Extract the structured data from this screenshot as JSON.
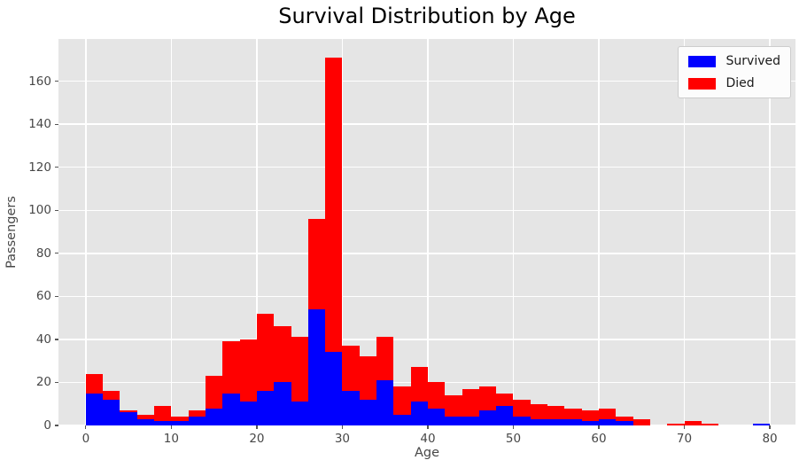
{
  "title": "Survival Distribution by Age",
  "chart_data": {
    "type": "bar",
    "subtype": "stacked-histogram",
    "title": "Survival Distribution by Age",
    "xlabel": "Age",
    "ylabel": "Passengers",
    "grid": true,
    "legend_position": "upper right",
    "bin_width": 2,
    "bin_starts": [
      0,
      2,
      4,
      6,
      8,
      10,
      12,
      14,
      16,
      18,
      20,
      22,
      24,
      26,
      28,
      30,
      32,
      34,
      36,
      38,
      40,
      42,
      44,
      46,
      48,
      50,
      52,
      54,
      56,
      58,
      60,
      62,
      64,
      66,
      68,
      70,
      72,
      74,
      76,
      78
    ],
    "series": [
      {
        "name": "Survived",
        "color": "#0000ff",
        "values": [
          15,
          12,
          6,
          3,
          2,
          2,
          4,
          8,
          15,
          11,
          16,
          20,
          11,
          54,
          34,
          16,
          12,
          21,
          5,
          11,
          8,
          4,
          4,
          7,
          9,
          4,
          3,
          3,
          3,
          2,
          3,
          2,
          0,
          0,
          0,
          0,
          0,
          0,
          0,
          1
        ]
      },
      {
        "name": "Died",
        "color": "#ff0000",
        "values": [
          9,
          4,
          1,
          2,
          7,
          2,
          3,
          15,
          24,
          29,
          36,
          26,
          30,
          42,
          137,
          21,
          20,
          20,
          13,
          16,
          12,
          10,
          13,
          11,
          6,
          8,
          7,
          6,
          5,
          5,
          5,
          2,
          3,
          0,
          1,
          2,
          1,
          0,
          0,
          0
        ]
      }
    ],
    "x_ticks": [
      0,
      10,
      20,
      30,
      40,
      50,
      60,
      70,
      80
    ],
    "y_ticks": [
      0,
      20,
      40,
      60,
      80,
      100,
      120,
      140,
      160
    ],
    "xlim": [
      -3.2,
      83
    ],
    "ylim": [
      0,
      179.6
    ]
  },
  "style": {
    "plot_background": "#e5e5e5",
    "gridline_color": "#ffffff",
    "tick_color": "#555555",
    "tick_label_color": "#474747",
    "axis_label_color": "#474747",
    "title_color": "#000000",
    "legend_background": "#fcfcfc",
    "legend_border": "#cccccc"
  }
}
